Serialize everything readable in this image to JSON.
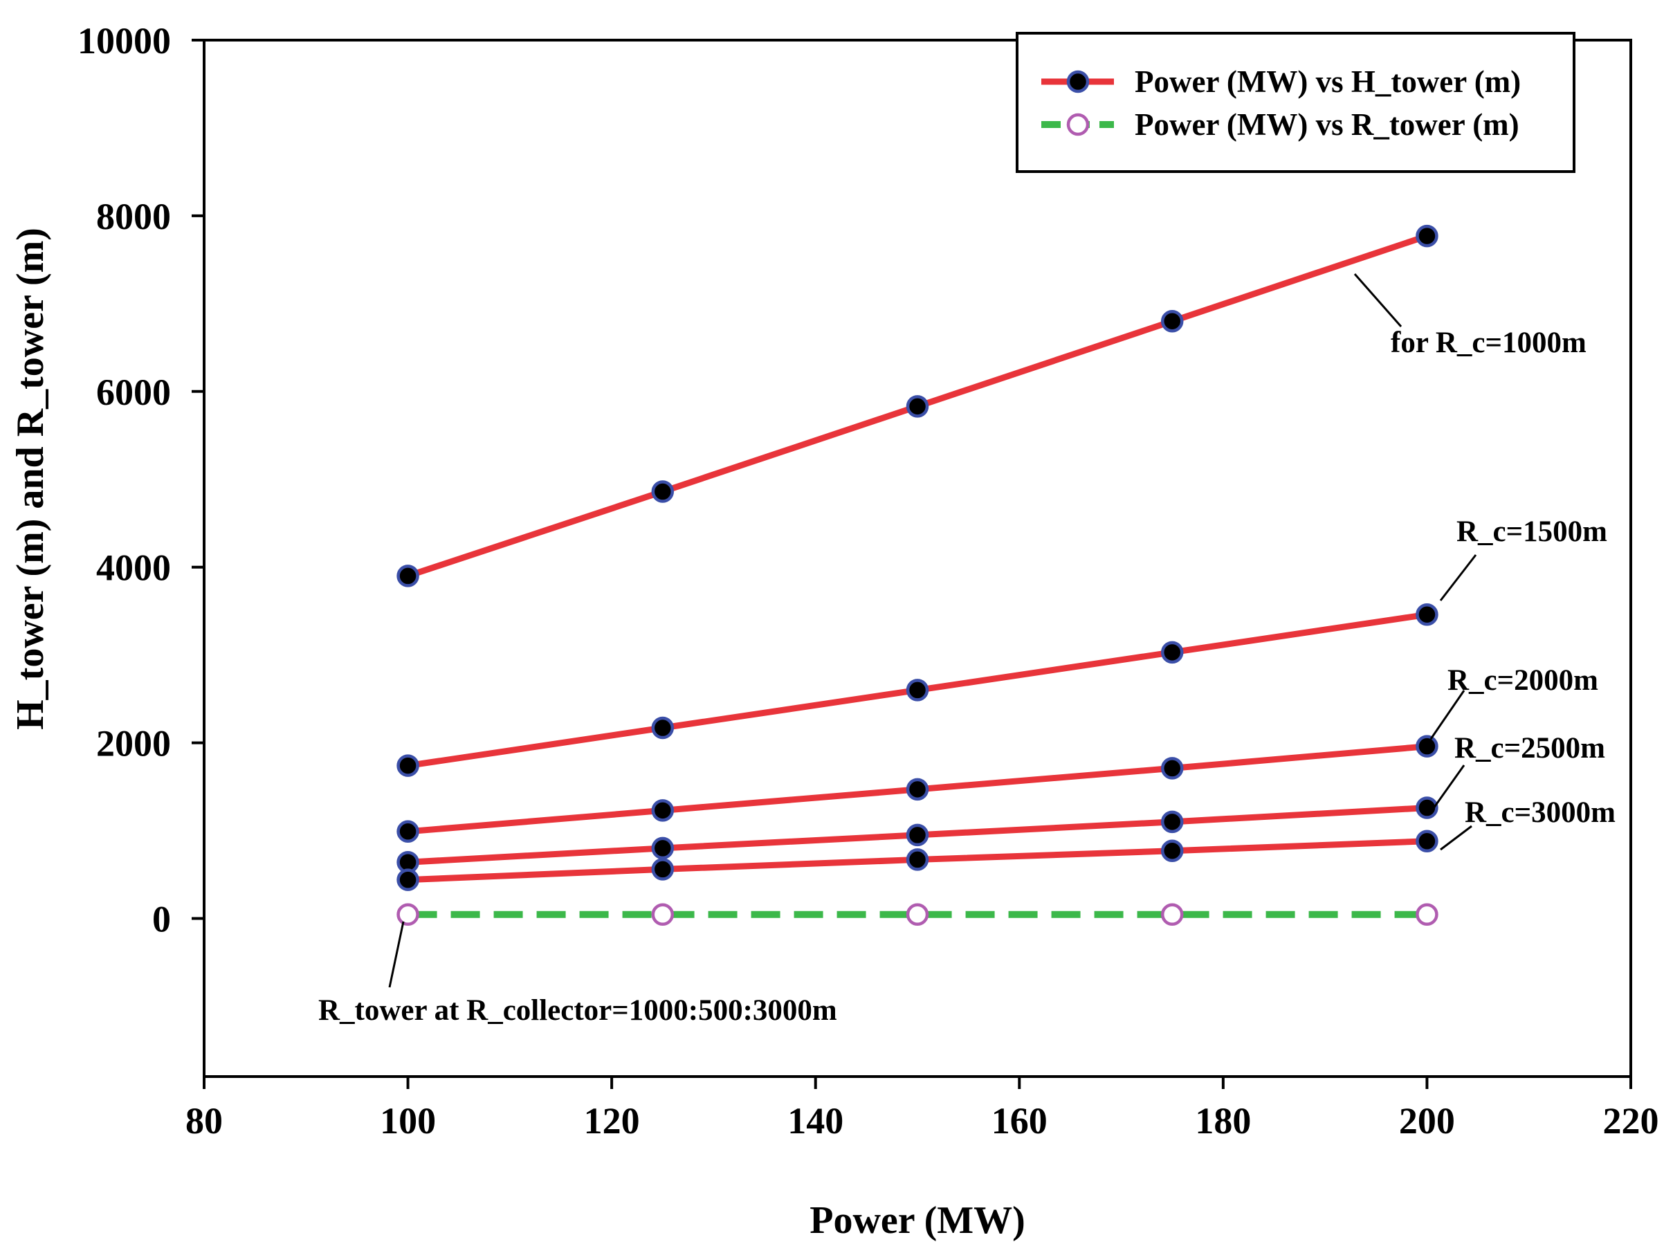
{
  "chart_data": {
    "type": "line",
    "title": "",
    "xlabel": "Power (MW)",
    "ylabel": "H_tower (m) and R_tower (m)",
    "xlim": [
      80,
      220
    ],
    "ylim": [
      -1800,
      10000
    ],
    "x_ticks": [
      80,
      100,
      120,
      140,
      160,
      180,
      200,
      220
    ],
    "y_ticks": [
      0,
      2000,
      4000,
      6000,
      8000,
      10000
    ],
    "x": [
      100,
      125,
      150,
      175,
      200
    ],
    "series": [
      {
        "name": "Power (MW) vs H_tower (m)",
        "group": "H_tower",
        "label": "R_c=1000m",
        "values": [
          3900,
          4860,
          5830,
          6800,
          7770
        ]
      },
      {
        "name": "Power (MW) vs H_tower (m)",
        "group": "H_tower",
        "label": "R_c=1500m",
        "values": [
          1740,
          2170,
          2600,
          3030,
          3460
        ]
      },
      {
        "name": "Power (MW) vs H_tower (m)",
        "group": "H_tower",
        "label": "R_c=2000m",
        "values": [
          990,
          1230,
          1470,
          1710,
          1960
        ]
      },
      {
        "name": "Power (MW) vs H_tower (m)",
        "group": "H_tower",
        "label": "R_c=2500m",
        "values": [
          640,
          800,
          950,
          1100,
          1260
        ]
      },
      {
        "name": "Power (MW) vs H_tower (m)",
        "group": "H_tower",
        "label": "R_c=3000m",
        "values": [
          440,
          560,
          670,
          770,
          880
        ]
      },
      {
        "name": "Power (MW) vs R_tower (m)",
        "group": "R_tower",
        "label": "R_tower at R_collector=1000:500:3000m",
        "values": [
          45,
          45,
          45,
          45,
          45
        ]
      }
    ],
    "legend": {
      "position": "top-right",
      "entries": [
        "Power (MW) vs H_tower (m)",
        "Power (MW) vs R_tower (m)"
      ]
    },
    "annotations": [
      {
        "text": "for R_c=1000m",
        "x": 200,
        "y": 7770
      },
      {
        "text": "R_c=1500m",
        "x": 200,
        "y": 3460
      },
      {
        "text": "R_c=2000m",
        "x": 200,
        "y": 1960
      },
      {
        "text": "R_c=2500m",
        "x": 200,
        "y": 1260
      },
      {
        "text": "R_c=3000m",
        "x": 200,
        "y": 880
      },
      {
        "text": "R_tower at R_collector=1000:500:3000m",
        "x": 100,
        "y": 45
      }
    ],
    "colors": {
      "h_line": "#e8343a",
      "h_marker_fill": "#000000",
      "h_marker_edge": "#3b4fa8",
      "r_line": "#3cb84a",
      "r_marker_edge": "#b05cb0",
      "r_marker_fill": "#ffffff"
    },
    "grid": false
  }
}
